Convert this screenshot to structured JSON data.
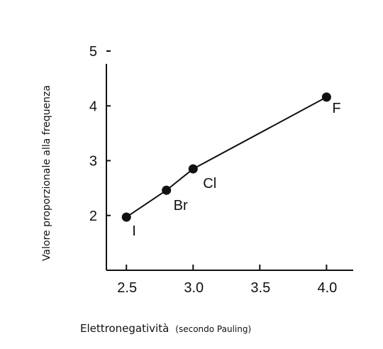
{
  "chart_data": {
    "type": "line",
    "xlabel": "Elettronegatività",
    "xlabel_note": "(secondo Pauling)",
    "ylabel": "Valore proporzionale alla frequenza",
    "xlim": [
      2.35,
      4.2
    ],
    "ylim": [
      1.0,
      5.0
    ],
    "x_ticks": [
      2.5,
      3.0,
      3.5,
      4.0
    ],
    "x_tick_labels": [
      "2.5",
      "3.0",
      "3.5",
      "4.0"
    ],
    "y_ticks": [
      2,
      3,
      4,
      5
    ],
    "y_tick_labels": [
      "2",
      "3",
      "4",
      "5"
    ],
    "grid": false,
    "points": [
      {
        "label": "I",
        "x": 2.5,
        "y": 1.97
      },
      {
        "label": "Br",
        "x": 2.8,
        "y": 2.46
      },
      {
        "label": "Cl",
        "x": 3.0,
        "y": 2.85
      },
      {
        "label": "F",
        "x": 4.0,
        "y": 4.16
      }
    ]
  }
}
